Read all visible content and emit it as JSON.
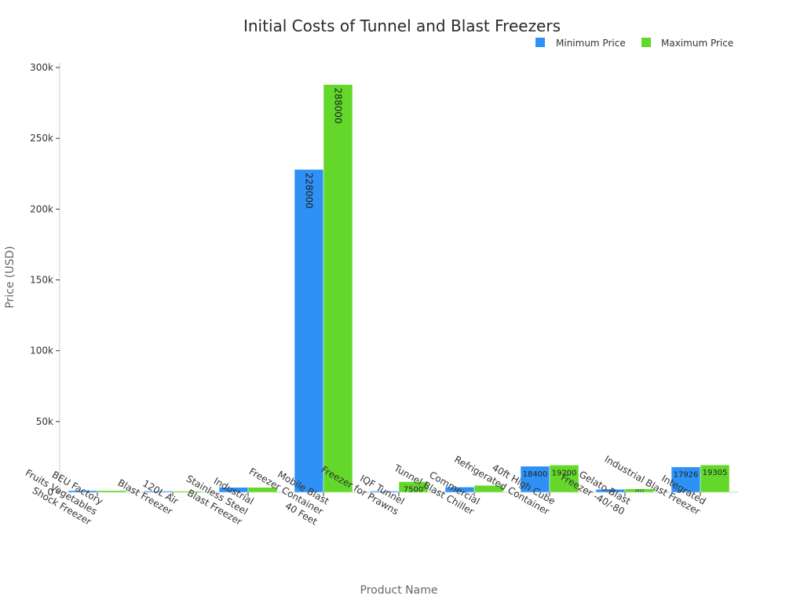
{
  "chart_data": {
    "type": "bar",
    "title": "Initial Costs of Tunnel and Blast Freezers",
    "xlabel": "Product Name",
    "ylabel": "Price (USD)",
    "ylim": [
      0,
      300000
    ],
    "yticks": [
      0,
      50000,
      100000,
      150000,
      200000,
      250000,
      300000
    ],
    "ytick_labels": [
      "0",
      "50k",
      "100k",
      "150k",
      "200k",
      "250k",
      "300k"
    ],
    "legend_position": "top-right",
    "categories": [
      [
        "BEU Factory",
        "Fruits Vegetables",
        "Shock Freezer"
      ],
      [
        "120L Air",
        "Blast Freezer"
      ],
      [
        "Industrial",
        "Stainless Steel",
        "Blast Freezer"
      ],
      [
        "Mobile Blast",
        "Freezer Container",
        "40 Feet"
      ],
      [
        "IQF Tunnel",
        "Freezer for Prawns"
      ],
      [
        "Commercial",
        "Tunnel Blast Chiller"
      ],
      [
        "40ft High Cube",
        "Refrigerated Container"
      ],
      [
        "Gelato Blast",
        "Freezer -40/-80"
      ],
      [
        "Integrated",
        "Industrial Blast Freezer"
      ]
    ],
    "series": [
      {
        "name": "Minimum Price",
        "color": "#2e91f5",
        "values": [
          1200,
          800,
          3500,
          228000,
          800,
          3700,
          18400,
          2118,
          17926
        ],
        "labels": [
          "",
          "",
          "",
          "228000",
          "",
          "",
          "18400",
          "2118",
          "17926"
        ]
      },
      {
        "name": "Maximum Price",
        "color": "#63d82b",
        "values": [
          1200,
          800,
          3500,
          288000,
          7500,
          4900,
          19200,
          2413,
          19305
        ],
        "labels": [
          "",
          "",
          "",
          "288000",
          "7500",
          "",
          "19200",
          "2413",
          "19305"
        ]
      }
    ]
  }
}
